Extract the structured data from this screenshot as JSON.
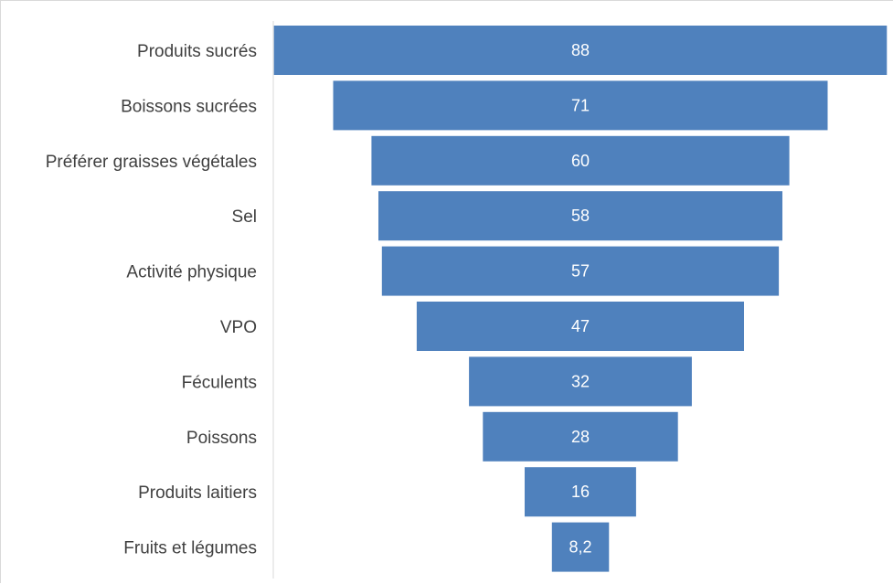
{
  "chart_data": {
    "type": "bar",
    "subtype": "funnel",
    "categories": [
      "Produits sucrés",
      "Boissons sucrées",
      "Préférer graisses végétales",
      "Sel",
      "Activité physique",
      "VPO",
      "Féculents",
      "Poissons",
      "Produits laitiers",
      "Fruits et légumes"
    ],
    "values": [
      88,
      71,
      60,
      58,
      57,
      47,
      32,
      28,
      16,
      8.2
    ],
    "value_labels": [
      "88",
      "71",
      "60",
      "58",
      "57",
      "47",
      "32",
      "28",
      "16",
      "8,2"
    ],
    "title": "",
    "xlabel": "",
    "ylabel": "",
    "bar_color": "#4f81bd",
    "label_color": "#404040",
    "value_label_color": "#ffffff",
    "grid": false,
    "legend": "none"
  }
}
